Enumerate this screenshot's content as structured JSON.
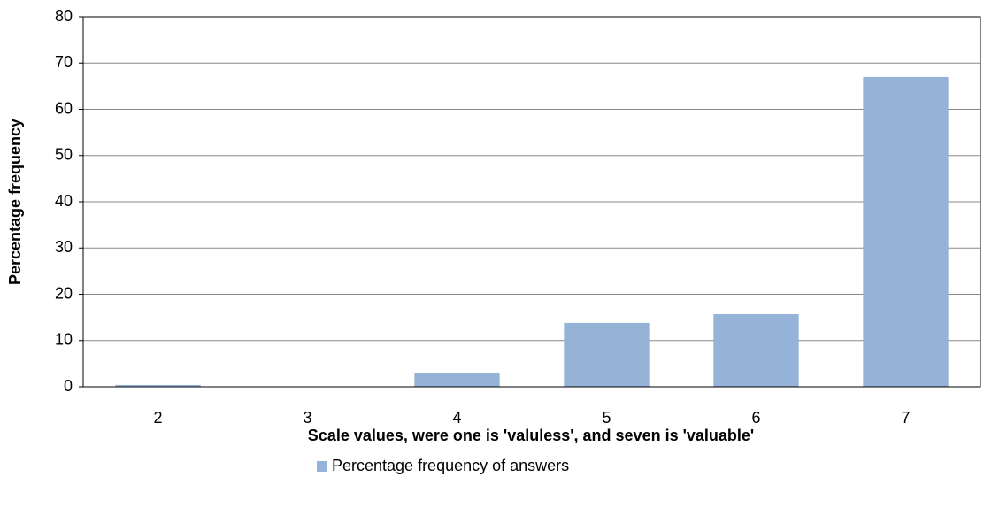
{
  "chart_data": {
    "type": "bar",
    "x_label": "Scale values, were one is 'valuless', and seven is 'valuable'",
    "y_label": "Percentage frequency",
    "categories": [
      "2",
      "3",
      "4",
      "5",
      "6",
      "7"
    ],
    "series": [
      {
        "name": "Percentage frequency of answers",
        "color": "#95b3d7",
        "values": [
          0.4,
          0,
          2.9,
          13.8,
          15.7,
          67
        ]
      }
    ],
    "ylim": [
      0,
      80
    ],
    "yticks": [
      0,
      10,
      20,
      30,
      40,
      50,
      60,
      70,
      80
    ],
    "grid": true,
    "legend": "bottom"
  }
}
